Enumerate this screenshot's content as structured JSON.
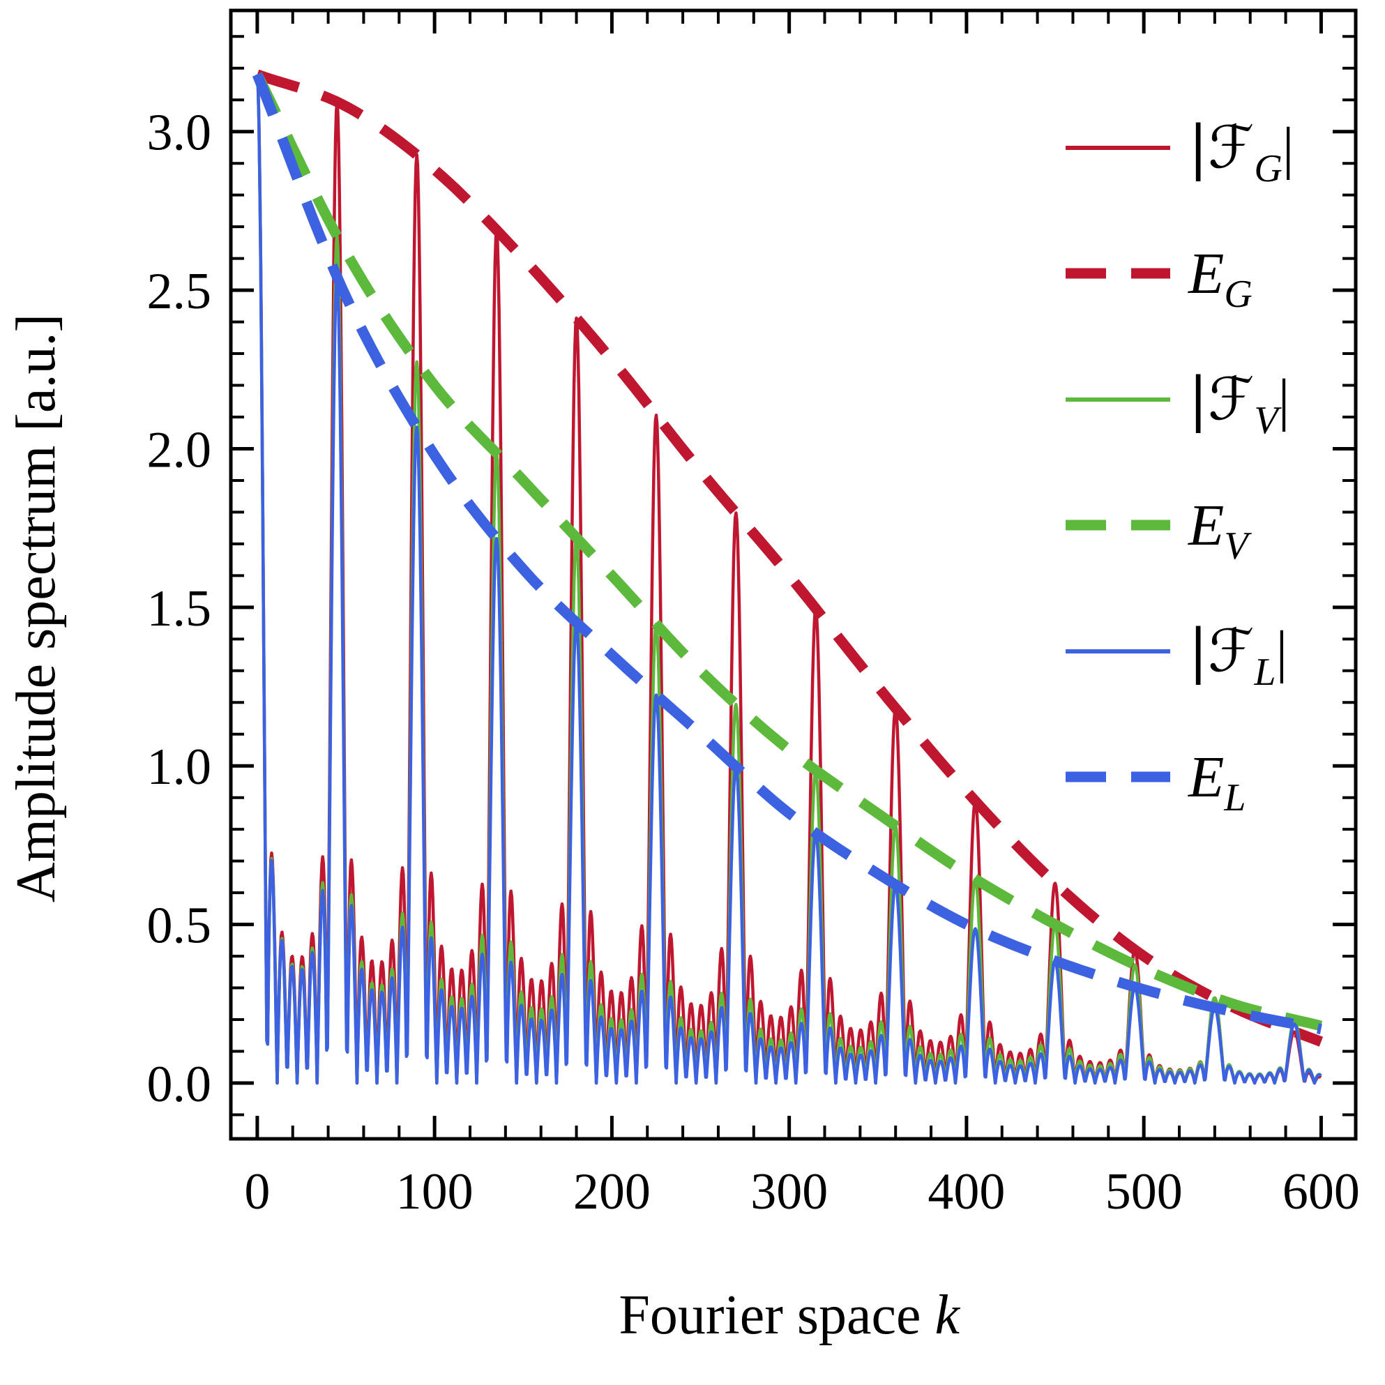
{
  "figure": {
    "background": "#ffffff",
    "frame_color": "#000000"
  },
  "colors": {
    "red": "#C01731",
    "green": "#5CB93C",
    "blue": "#3C61E1",
    "text": "#000000"
  },
  "legend": {
    "position": "top-right-inside",
    "items": [
      {
        "id": "F_G",
        "style": "solid",
        "color": "red",
        "label_text": "|ℱ_G|",
        "label": {
          "pre": "|ℱ",
          "sub": "G",
          "post": "|"
        }
      },
      {
        "id": "E_G",
        "style": "dashed",
        "color": "red",
        "label_text": "E_G",
        "label": {
          "pre": "E",
          "sub": "G",
          "post": ""
        }
      },
      {
        "id": "F_V",
        "style": "solid",
        "color": "green",
        "label_text": "|ℱ_V|",
        "label": {
          "pre": "|ℱ",
          "sub": "V",
          "post": "|"
        }
      },
      {
        "id": "E_V",
        "style": "dashed",
        "color": "green",
        "label_text": "E_V",
        "label": {
          "pre": "E",
          "sub": "V",
          "post": ""
        }
      },
      {
        "id": "F_L",
        "style": "solid",
        "color": "blue",
        "label_text": "|ℱ_L|",
        "label": {
          "pre": "|ℱ",
          "sub": "L",
          "post": "|"
        }
      },
      {
        "id": "E_L",
        "style": "dashed",
        "color": "blue",
        "label_text": "E_L",
        "label": {
          "pre": "E",
          "sub": "L",
          "post": ""
        }
      }
    ]
  },
  "chart_data": {
    "type": "line",
    "title": "",
    "xlabel": "Fourier space k",
    "xlabel_parts": {
      "roman": "Fourier space ",
      "italic": "k"
    },
    "ylabel": "Amplitude spectrum [a.u.]",
    "xlim": [
      -14.9,
      619.5
    ],
    "ylim": [
      -0.176,
      3.382
    ],
    "grid": false,
    "legend_position": "upper right inside, no frame",
    "x_axis": {
      "major_ticks": [
        0,
        100,
        200,
        300,
        400,
        500,
        600
      ],
      "major_labels": [
        "0",
        "100",
        "200",
        "300",
        "400",
        "500",
        "600"
      ],
      "minor_step": 20,
      "data_range": [
        0,
        600
      ]
    },
    "y_axis": {
      "major_ticks": [
        0.0,
        0.5,
        1.0,
        1.5,
        2.0,
        2.5,
        3.0
      ],
      "major_labels": [
        "0.0",
        "0.5",
        "1.0",
        "1.5",
        "2.0",
        "2.5",
        "3.0"
      ],
      "minor_step": 0.1
    },
    "comb": {
      "description": "Solid curves are frequency-comb spectra: |F(k)| = E(k) * |sin(N*pi*k/s)/(N*sin(pi*k/s))|",
      "peak_spacing": 45,
      "num_pulses": 8,
      "peak_positions": [
        0,
        45,
        90,
        135,
        180,
        225,
        270,
        315,
        360,
        405,
        450,
        495,
        540,
        585
      ],
      "first_sidelobe_ratio": 0.22
    },
    "envelopes": {
      "k": [
        0,
        50,
        100,
        150,
        200,
        250,
        300,
        350,
        400,
        450,
        500,
        550,
        600
      ],
      "E_G": [
        3.18,
        3.08,
        2.88,
        2.6,
        2.28,
        1.93,
        1.6,
        1.25,
        0.92,
        0.63,
        0.4,
        0.24,
        0.13
      ],
      "E_V": [
        3.18,
        2.62,
        2.2,
        1.9,
        1.6,
        1.3,
        1.05,
        0.85,
        0.66,
        0.5,
        0.36,
        0.25,
        0.18
      ],
      "E_L": [
        3.18,
        2.48,
        1.98,
        1.62,
        1.35,
        1.1,
        0.85,
        0.66,
        0.5,
        0.385,
        0.295,
        0.225,
        0.17
      ]
    },
    "series": [
      {
        "name": "|ℱ_G|",
        "kind": "comb",
        "envelope": "E_G",
        "color": "red",
        "style": "solid"
      },
      {
        "name": "E_G",
        "kind": "envelope",
        "envelope": "E_G",
        "color": "red",
        "style": "dashed"
      },
      {
        "name": "|ℱ_V|",
        "kind": "comb",
        "envelope": "E_V",
        "color": "green",
        "style": "solid"
      },
      {
        "name": "E_V",
        "kind": "envelope",
        "envelope": "E_V",
        "color": "green",
        "style": "dashed"
      },
      {
        "name": "|ℱ_L|",
        "kind": "comb",
        "envelope": "E_L",
        "color": "blue",
        "style": "solid"
      },
      {
        "name": "E_L",
        "kind": "envelope",
        "envelope": "E_L",
        "color": "blue",
        "style": "dashed"
      }
    ]
  }
}
